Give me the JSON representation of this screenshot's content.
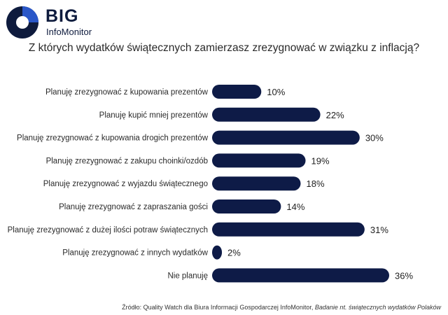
{
  "brand": {
    "big": "BIG",
    "sub": "InfoMonitor",
    "colors": {
      "dark": "#0e1b3d",
      "accent": "#2a57c8"
    }
  },
  "title": "Z których wydatków świątecznych zamierzasz zrezygnować w związku z inflacją?",
  "source": {
    "prefix": "Źródło: Quality Watch dla Biura Informacji Gospodarczej InfoMonitor, ",
    "italic": "Badanie nt. świątecznych wydatków Polaków"
  },
  "chart_data": {
    "type": "bar",
    "orientation": "horizontal",
    "categories": [
      "Planuję zrezygnować z kupowania prezentów",
      "Planuję kupić mniej prezentów",
      "Planuję zrezygnować z kupowania drogich prezentów",
      "Planuję zrezygnować z zakupu choinki/ozdób",
      "Planuję zrezygnować z wyjazdu świątecznego",
      "Planuję zrezygnować z zapraszania gości",
      "Planuję zrezygnować z dużej ilości potraw świątecznych",
      "Planuję zrezygnować z innych wydatków",
      "Nie planuję"
    ],
    "values": [
      10,
      22,
      30,
      19,
      18,
      14,
      31,
      2,
      36
    ],
    "value_labels": [
      "10%",
      "22%",
      "30%",
      "19%",
      "18%",
      "14%",
      "31%",
      "2%",
      "36%"
    ],
    "xlim": [
      0,
      36
    ],
    "bar_color": "#0e1b47",
    "grid": false,
    "legend": "none"
  }
}
